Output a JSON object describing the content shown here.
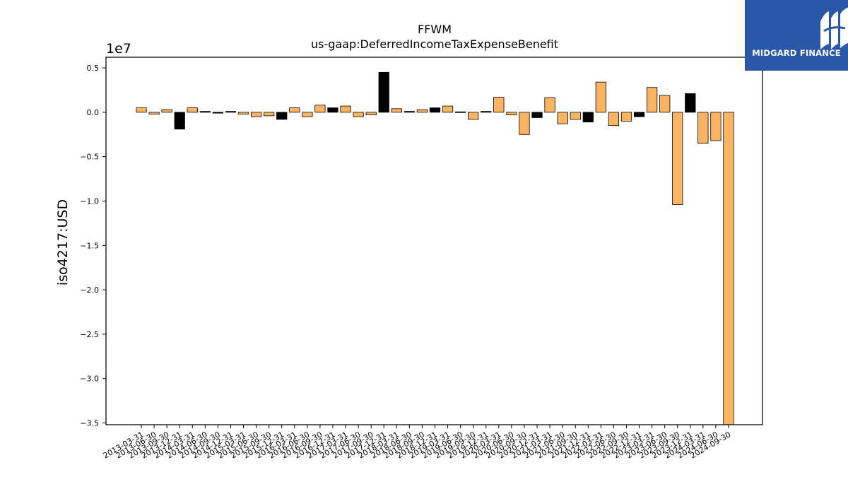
{
  "brand": {
    "logo_text": "MIDGARD FINANCE",
    "color": "#2a57a8"
  },
  "chart_data": {
    "type": "bar",
    "title": "FFWM",
    "subtitle": "us-gaap:DeferredIncomeTaxExpenseBenefit",
    "ylabel": "iso4217:USD",
    "xlabel": "",
    "y_offset_label": "1e7",
    "ylim": [
      -35200000,
      6200000
    ],
    "yticks": [
      0.5,
      0.0,
      -0.5,
      -1.0,
      -1.5,
      -2.0,
      -2.5,
      -3.0,
      -3.5
    ],
    "ytick_labels": [
      "0.5",
      "0.0",
      "−0.5",
      "−1.0",
      "−1.5",
      "−2.0",
      "−2.5",
      "−3.0",
      "−3.5"
    ],
    "colors": {
      "primary": "#fdb462",
      "highlight": "#000000",
      "edge": "#000000"
    },
    "categories": [
      "2013-03-31",
      "2013-06-30",
      "2013-09-30",
      "2013-12-31",
      "2014-03-31",
      "2014-06-30",
      "2014-09-30",
      "2014-12-31",
      "2015-03-31",
      "2015-06-30",
      "2015-09-30",
      "2015-12-31",
      "2016-03-31",
      "2016-06-30",
      "2016-09-30",
      "2016-12-31",
      "2017-03-31",
      "2017-06-30",
      "2017-09-30",
      "2017-12-31",
      "2018-03-31",
      "2018-06-30",
      "2018-09-30",
      "2018-12-31",
      "2019-03-31",
      "2019-06-30",
      "2019-09-30",
      "2019-12-31",
      "2020-03-31",
      "2020-06-30",
      "2020-09-30",
      "2020-12-31",
      "2021-03-31",
      "2021-06-30",
      "2021-09-30",
      "2021-12-31",
      "2022-03-31",
      "2022-06-30",
      "2022-09-30",
      "2022-12-31",
      "2023-03-31",
      "2023-06-30",
      "2023-09-30",
      "2023-12-31",
      "2024-03-31",
      "2024-06-30",
      "2024-09-30"
    ],
    "values": [
      500000,
      -200000,
      300000,
      -1900000,
      500000,
      100000,
      -100000,
      100000,
      -200000,
      -500000,
      -400000,
      -800000,
      500000,
      -500000,
      800000,
      500000,
      700000,
      -500000,
      -300000,
      4500000,
      400000,
      100000,
      300000,
      500000,
      700000,
      50000,
      -800000,
      100000,
      1700000,
      -300000,
      -2500000,
      -600000,
      1650000,
      -1300000,
      -800000,
      -1100000,
      3400000,
      -1500000,
      -1000000,
      -500000,
      2800000,
      1900000,
      -10400000,
      2100000,
      -3500000,
      -3200000,
      -35200000
    ],
    "highlight": [
      false,
      false,
      false,
      true,
      false,
      true,
      true,
      true,
      false,
      false,
      false,
      true,
      false,
      false,
      false,
      true,
      false,
      false,
      false,
      true,
      false,
      true,
      false,
      true,
      false,
      true,
      false,
      true,
      false,
      false,
      false,
      true,
      false,
      false,
      false,
      true,
      false,
      false,
      false,
      true,
      false,
      false,
      false,
      true,
      false,
      false,
      false
    ]
  }
}
